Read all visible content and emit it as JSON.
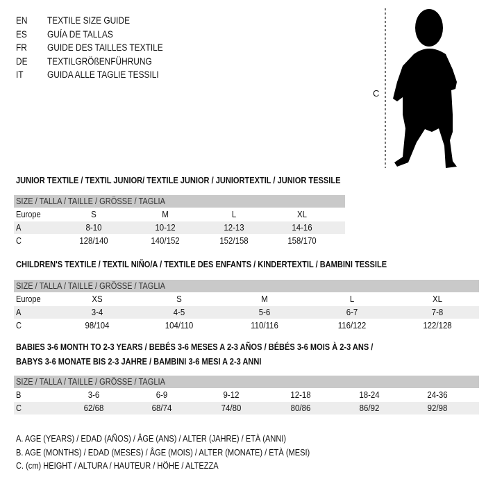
{
  "languages": [
    {
      "code": "EN",
      "text": "TEXTILE SIZE GUIDE"
    },
    {
      "code": "ES",
      "text": "GUÍA DE TALLAS"
    },
    {
      "code": "FR",
      "text": "GUIDE DES TAILLES TEXTILE"
    },
    {
      "code": "DE",
      "text": "TEXTILGRÖßENFÜHRUNG"
    },
    {
      "code": "IT",
      "text": "GUIDA ALLE TAGLIE TESSILI"
    }
  ],
  "figure": {
    "measure_label": "C"
  },
  "junior": {
    "title": "JUNIOR TEXTILE / TEXTIL JUNIOR/ TEXTILE JUNIOR / JUNIORTEXTIL / JUNIOR TESSILE",
    "header": "SIZE / TALLA / TAILLE / GRÖSSE / TAGLIA",
    "rows": [
      {
        "label": "Europe",
        "values": [
          "S",
          "M",
          "L",
          "XL"
        ]
      },
      {
        "label": "A",
        "values": [
          "8-10",
          "10-12",
          "12-13",
          "14-16"
        ]
      },
      {
        "label": "C",
        "values": [
          "128/140",
          "140/152",
          "152/158",
          "158/170"
        ]
      }
    ]
  },
  "children": {
    "title": "CHILDREN'S TEXTILE / TEXTIL NIÑO/A / TEXTILE DES ENFANTS / KINDERTEXTIL / BAMBINI TESSILE",
    "header": "SIZE / TALLA / TAILLE / GRÖSSE / TAGLIA",
    "rows": [
      {
        "label": "Europe",
        "values": [
          "XS",
          "S",
          "M",
          "L",
          "XL"
        ]
      },
      {
        "label": "A",
        "values": [
          "3-4",
          "4-5",
          "5-6",
          "6-7",
          "7-8"
        ]
      },
      {
        "label": "C",
        "values": [
          "98/104",
          "104/110",
          "110/116",
          "116/122",
          "122/128"
        ]
      }
    ]
  },
  "babies": {
    "title_line1": "BABIES 3-6 MONTH TO 2-3 YEARS / BEBÉS 3-6 MESES A 2-3 AÑOS / BÉBÉS 3-6 MOIS À 2-3 ANS /",
    "title_line2": "BABYS 3-6 MONATE BIS 2-3 JAHRE / BAMBINI 3-6 MESI A 2-3 ANNI",
    "header": "SIZE / TALLA / TAILLE / GRÖSSE / TAGLIA",
    "rows": [
      {
        "label": "B",
        "values": [
          "3-6",
          "6-9",
          "9-12",
          "12-18",
          "18-24",
          "24-36"
        ]
      },
      {
        "label": "C",
        "values": [
          "62/68",
          "68/74",
          "74/80",
          "80/86",
          "86/92",
          "92/98"
        ]
      }
    ]
  },
  "legend": [
    "A. AGE (YEARS) / EDAD (AÑOS) / ÂGE (ANS) / ALTER (JAHRE) / ETÀ (ANNI)",
    "B. AGE (MONTHS) / EDAD (MESES) / ÂGE (MOIS) / ALTER (MONATE) / ETÀ (MESI)",
    "C. (cm) HEIGHT / ALTURA / HAUTEUR / HÖHE / ALTEZZA"
  ]
}
